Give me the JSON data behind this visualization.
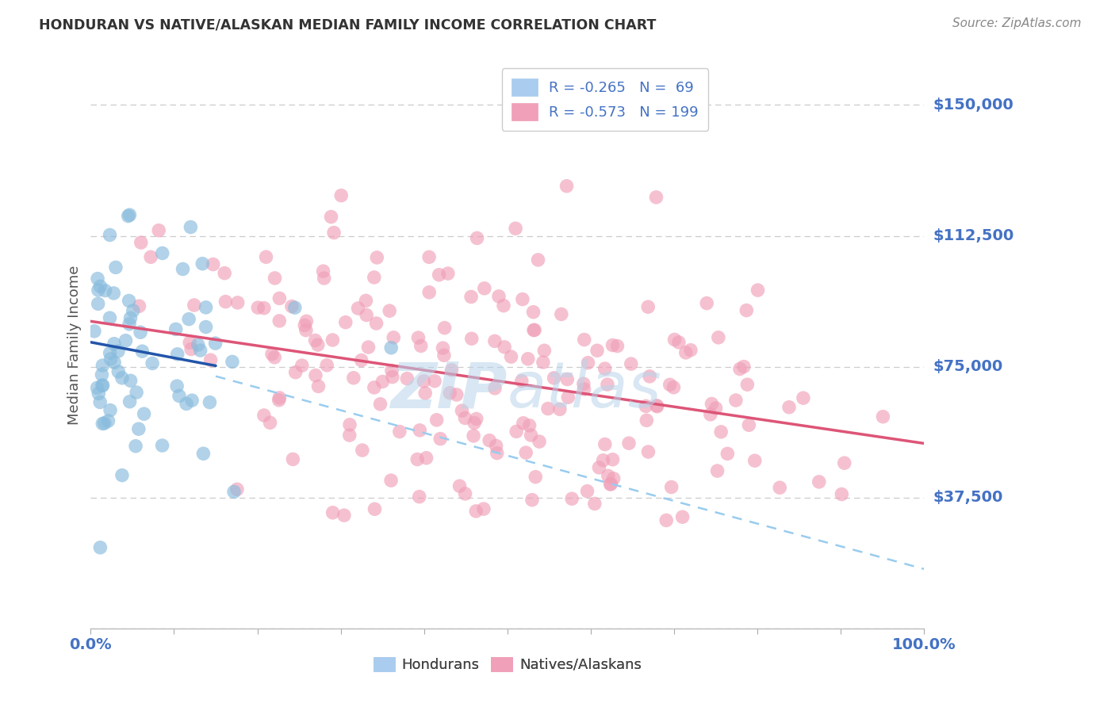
{
  "title": "HONDURAN VS NATIVE/ALASKAN MEDIAN FAMILY INCOME CORRELATION CHART",
  "source": "Source: ZipAtlas.com",
  "ylabel": "Median Family Income",
  "yticks": [
    0,
    37500,
    75000,
    112500,
    150000
  ],
  "ytick_labels": [
    "",
    "$37,500",
    "$75,000",
    "$112,500",
    "$150,000"
  ],
  "xlim": [
    0.0,
    1.0
  ],
  "ylim": [
    0,
    162500
  ],
  "blue_color": "#88bbdd",
  "pink_color": "#f0a0b8",
  "blue_line_color": "#2255aa",
  "pink_line_color": "#dd5577",
  "dashed_line_color": "#99ccee",
  "grid_color": "#cccccc",
  "title_color": "#333333",
  "axis_label_color": "#555555",
  "tick_label_color": "#4472c4",
  "source_color": "#888888",
  "R_blue": -0.265,
  "N_blue": 69,
  "R_pink": -0.573,
  "N_pink": 199,
  "blue_intercept": 82000,
  "blue_slope": -45000,
  "pink_intercept": 88000,
  "pink_slope": -35000,
  "dashed_intercept": 82000,
  "dashed_slope": -65000,
  "blue_line_xmax": 0.15,
  "dashed_line_xstart": 0.15,
  "seed": 42
}
